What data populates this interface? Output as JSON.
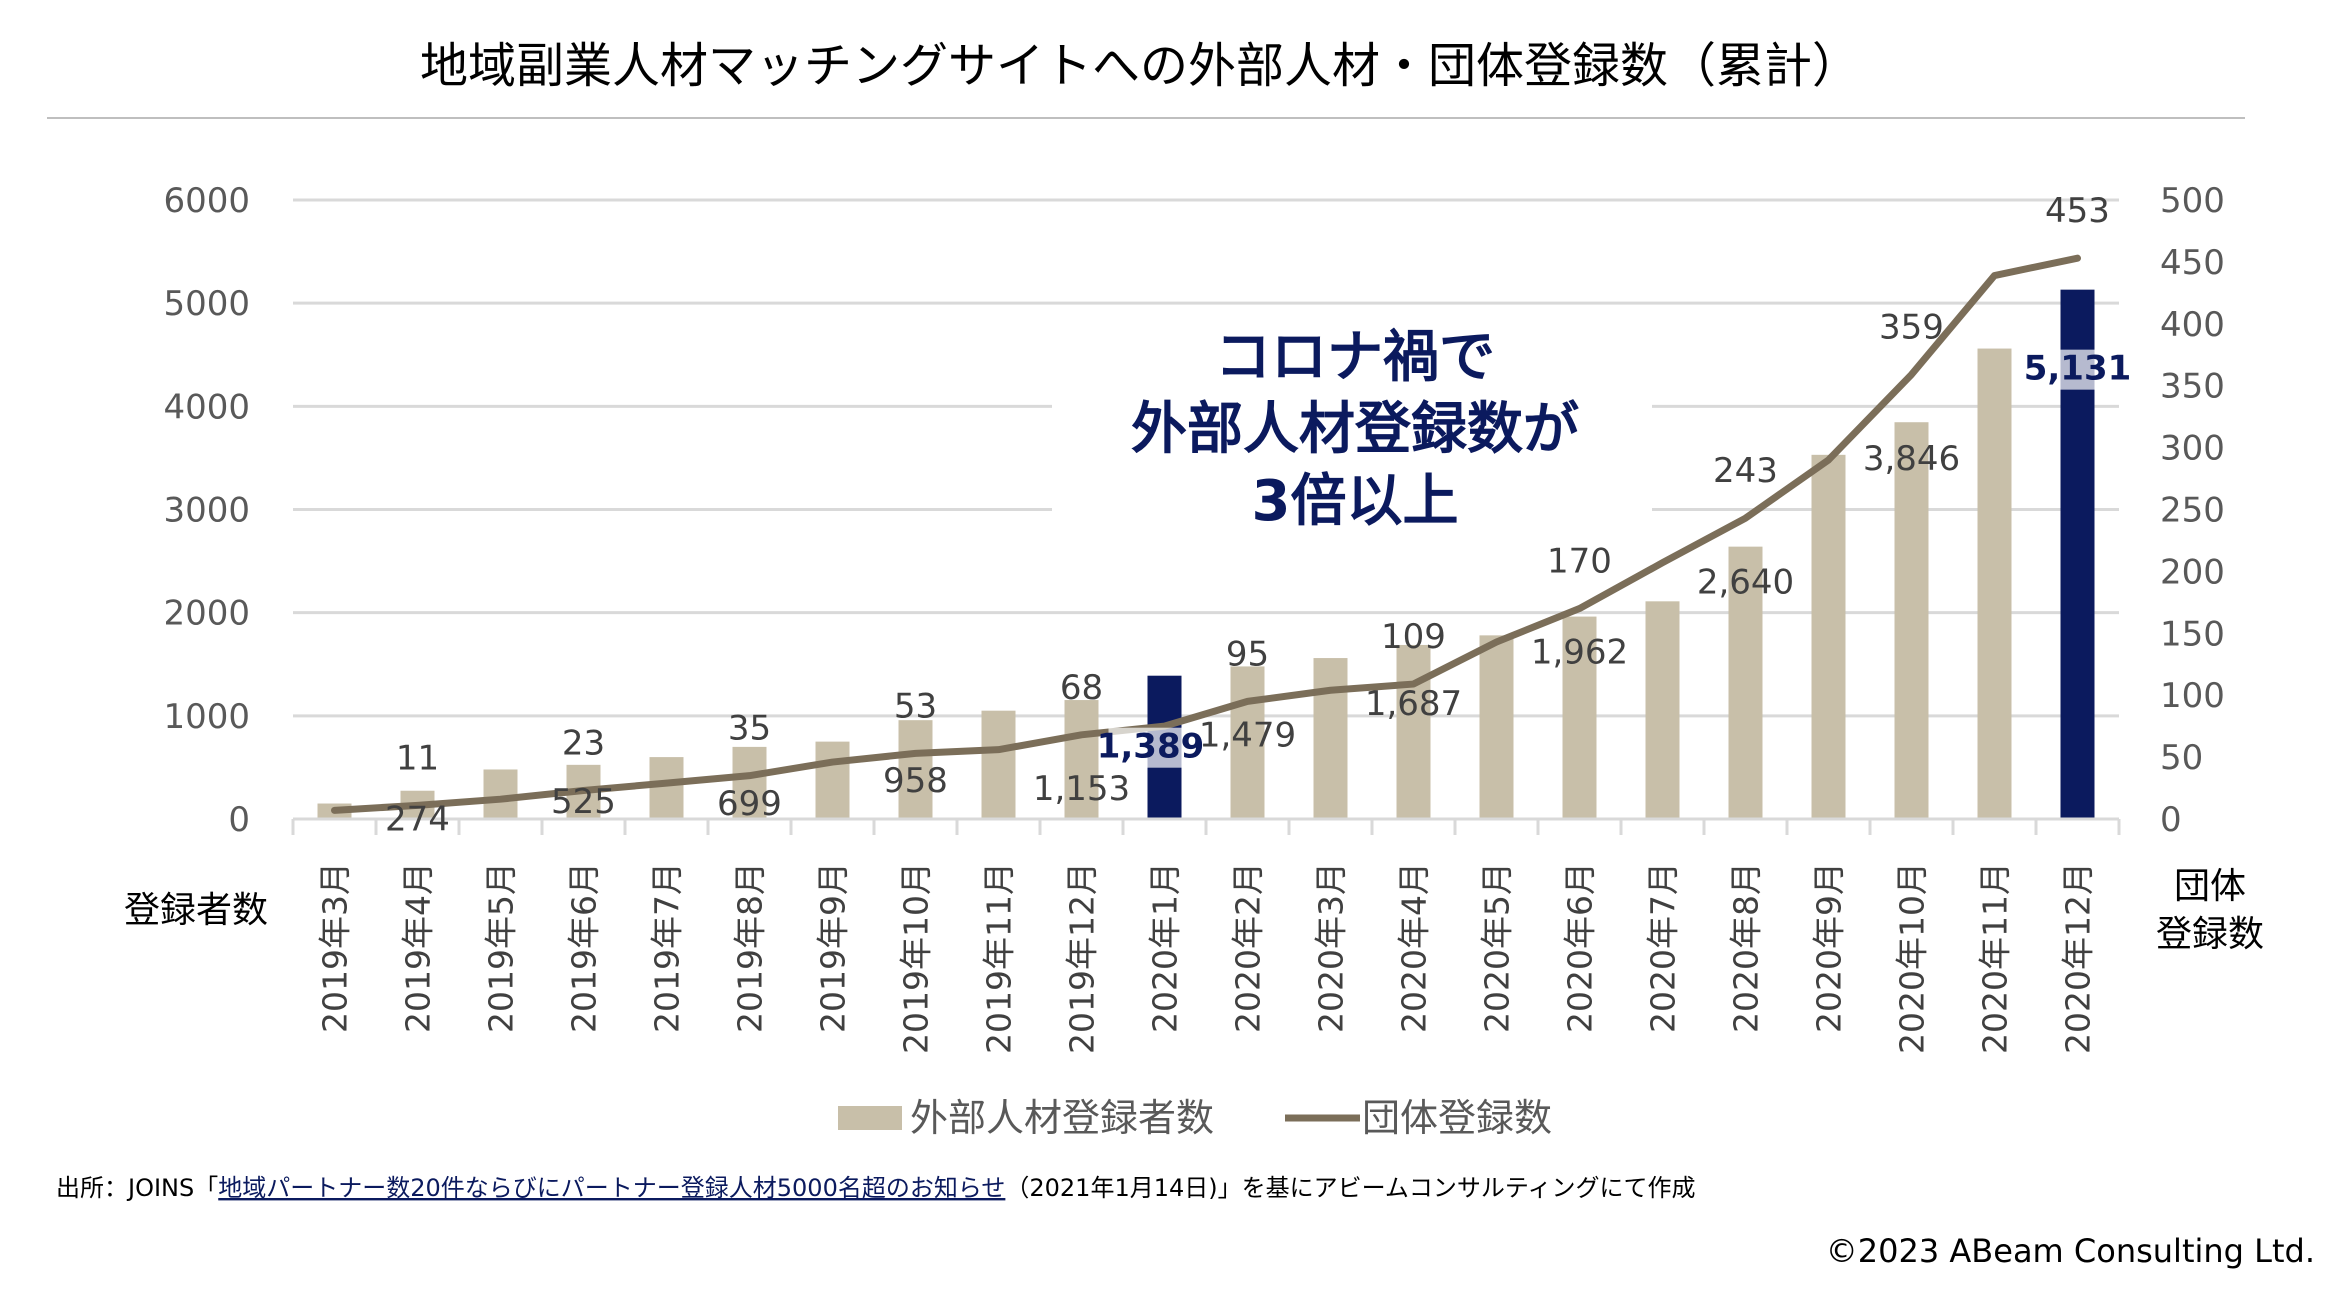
{
  "title": "地域副業人材マッチングサイトへの外部人材・団体登録数（累計）",
  "chart_data": {
    "type": "bar+line",
    "title": "地域副業人材マッチングサイトへの外部人材・団体登録数（累計）",
    "categories": [
      "2019年3月",
      "2019年4月",
      "2019年5月",
      "2019年6月",
      "2019年7月",
      "2019年8月",
      "2019年9月",
      "2019年10月",
      "2019年11月",
      "2019年12月",
      "2020年1月",
      "2020年2月",
      "2020年3月",
      "2020年4月",
      "2020年5月",
      "2020年6月",
      "2020年7月",
      "2020年8月",
      "2020年9月",
      "2020年10月",
      "2020年11月",
      "2020年12月"
    ],
    "series": [
      {
        "name": "外部人材登録者数",
        "type": "bar",
        "axis": "left",
        "color": "#c8bfa9",
        "highlight_color": "#0b1a5e",
        "values": [
          150,
          274,
          480,
          525,
          600,
          699,
          750,
          958,
          1050,
          1153,
          1389,
          1479,
          1560,
          1687,
          1780,
          1962,
          2110,
          2640,
          3530,
          3846,
          4560,
          5131
        ],
        "highlighted": [
          "2020年1月",
          "2020年12月"
        ],
        "labels": {
          "1": "274",
          "3": "525",
          "5": "699",
          "7": "958",
          "9": "1,153",
          "10": "1,389",
          "11": "1,479",
          "13": "1,687",
          "15": "1,962",
          "17": "2,640",
          "19": "3,846",
          "21": "5,131"
        }
      },
      {
        "name": "団体登録数",
        "type": "line",
        "axis": "right",
        "color": "#7b6e59",
        "values": [
          7,
          11,
          16,
          23,
          29,
          35,
          46,
          53,
          56,
          68,
          75,
          95,
          104,
          109,
          143,
          170,
          207,
          243,
          290,
          359,
          439,
          453
        ],
        "labels": {
          "1": "11",
          "3": "23",
          "5": "35",
          "7": "53",
          "9": "68",
          "11": "95",
          "13": "109",
          "15": "170",
          "17": "243",
          "19": "359",
          "21": "453"
        }
      }
    ],
    "y_left": {
      "label": "登録者数",
      "range": [
        0,
        6000
      ],
      "ticks": [
        "0",
        "1000",
        "2000",
        "3000",
        "4000",
        "5000",
        "6000"
      ]
    },
    "y_right": {
      "label_lines": [
        "団体",
        "登録数"
      ],
      "range": [
        0,
        500
      ],
      "ticks": [
        "0",
        "50",
        "100",
        "150",
        "200",
        "250",
        "300",
        "350",
        "400",
        "450",
        "500"
      ]
    },
    "grid": true,
    "legend_position": "bottom",
    "annotation": [
      "コロナ禍で",
      "外部人材登録数が",
      "3倍以上"
    ]
  },
  "source": {
    "prefix": "出所：JOINS「",
    "link": "地域パートナー数20件ならびにパートナー登録人材5000名超のお知らせ",
    "suffix": "（2021年1月14日)」を基にアビームコンサルティングにて作成"
  },
  "copyright": "©2023 ABeam Consulting Ltd."
}
